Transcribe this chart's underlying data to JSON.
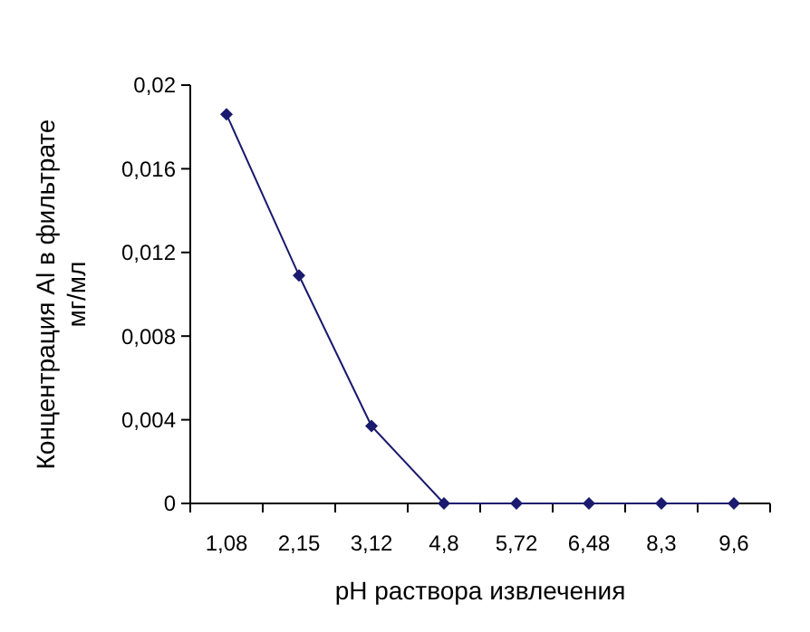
{
  "chart_data": {
    "type": "line",
    "xlabel": "pH раствора извлечения",
    "ylabel": "Концентрация Al в фильтрате мг/мл",
    "categories": [
      "1,08",
      "2,15",
      "3,12",
      "4,8",
      "5,72",
      "6,48",
      "8,3",
      "9,6"
    ],
    "series": [
      {
        "color": "#1a1a6e",
        "values": [
          0.0186,
          0.0109,
          0.0037,
          0,
          0,
          0,
          0,
          0
        ]
      }
    ],
    "ylim": [
      0,
      0.02
    ],
    "yticks": [
      0,
      {
        "value": 0.004,
        "label": "0,004"
      },
      {
        "value": 0.008,
        "label": "0,008"
      },
      {
        "value": 0.012,
        "label": "0,012"
      },
      {
        "value": 0.016,
        "label": "0,016"
      },
      {
        "value": 0.02,
        "label": "0,02"
      }
    ],
    "marker": "diamond",
    "line_style": "solid"
  }
}
